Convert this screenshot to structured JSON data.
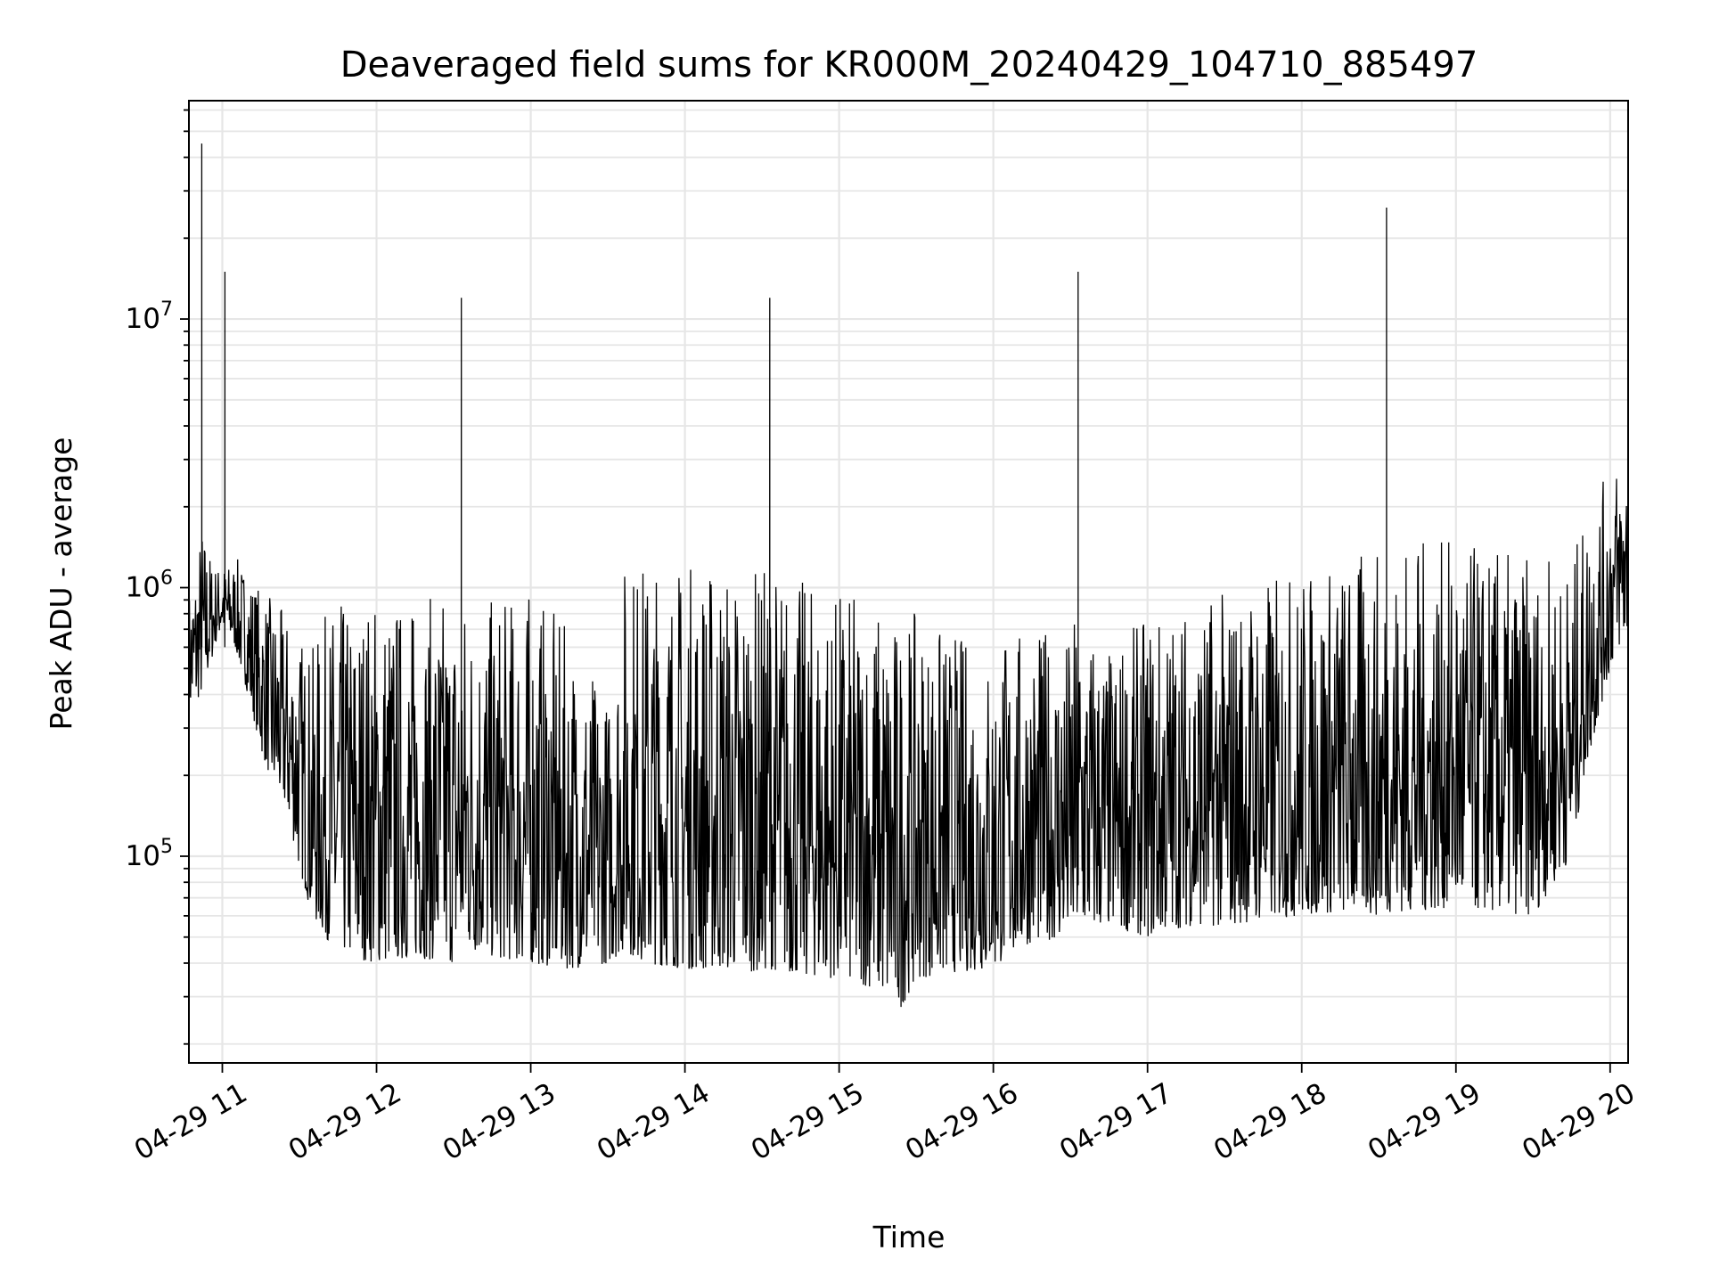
{
  "chart_data": {
    "type": "line",
    "title": "Deaveraged field sums for KR000M_20240429_104710_885497",
    "xlabel": "Time",
    "ylabel": "Peak ADU - average",
    "yscale": "log",
    "ylim": [
      17000,
      65000000
    ],
    "xlim": [
      "2024-04-29T10:47:00",
      "2024-04-29T20:07:00"
    ],
    "grid": "major+minor",
    "series_color": "#000000",
    "grid_color": "#e6e6e6",
    "x_ticks": [
      "04-29 11",
      "04-29 12",
      "04-29 13",
      "04-29 14",
      "04-29 15",
      "04-29 16",
      "04-29 17",
      "04-29 18",
      "04-29 19",
      "04-29 20"
    ],
    "y_ticks": [
      {
        "base": "10",
        "exp": "5",
        "value": 100000
      },
      {
        "base": "10",
        "exp": "6",
        "value": 1000000
      },
      {
        "base": "10",
        "exp": "7",
        "value": 10000000
      }
    ],
    "series": [
      {
        "x": [
          "2024-04-29T10:47:00",
          "2024-04-29T10:50:00",
          "2024-04-29T10:52:00",
          "2024-04-29T10:55:00",
          "2024-04-29T10:58:00",
          "2024-04-29T11:00:00",
          "2024-04-29T11:01:00",
          "2024-04-29T11:05:00",
          "2024-04-29T11:10:00",
          "2024-04-29T11:15:00",
          "2024-04-29T11:20:00",
          "2024-04-29T11:25:00",
          "2024-04-29T11:30:00",
          "2024-04-29T11:35:00",
          "2024-04-29T11:40:00",
          "2024-04-29T11:45:00",
          "2024-04-29T11:50:00",
          "2024-04-29T12:00:00",
          "2024-04-29T12:15:00",
          "2024-04-29T12:30:00",
          "2024-04-29T12:33:00",
          "2024-04-29T12:45:00",
          "2024-04-29T13:00:00",
          "2024-04-29T13:15:00",
          "2024-04-29T13:30:00",
          "2024-04-29T13:37:00",
          "2024-04-29T13:40:00",
          "2024-04-29T13:45:00",
          "2024-04-29T14:00:00",
          "2024-04-29T14:15:00",
          "2024-04-29T14:30:00",
          "2024-04-29T14:33:00",
          "2024-04-29T14:45:00",
          "2024-04-29T15:00:00",
          "2024-04-29T15:15:00",
          "2024-04-29T15:23:00",
          "2024-04-29T15:30:00",
          "2024-04-29T15:45:00",
          "2024-04-29T16:00:00",
          "2024-04-29T16:05:00",
          "2024-04-29T16:15:00",
          "2024-04-29T16:30:00",
          "2024-04-29T16:33:00",
          "2024-04-29T16:45:00",
          "2024-04-29T17:00:00",
          "2024-04-29T17:15:00",
          "2024-04-29T17:30:00",
          "2024-04-29T17:45:00",
          "2024-04-29T18:00:00",
          "2024-04-29T18:15:00",
          "2024-04-29T18:30:00",
          "2024-04-29T18:33:00",
          "2024-04-29T18:45:00",
          "2024-04-29T19:00:00",
          "2024-04-29T19:15:00",
          "2024-04-29T19:30:00",
          "2024-04-29T19:45:00",
          "2024-04-29T19:50:00",
          "2024-04-29T20:00:00",
          "2024-04-29T20:05:00"
        ],
        "y": [
          550000,
          600000,
          45000000,
          750000,
          1000000,
          900000,
          15000000,
          1000000,
          700000,
          600000,
          400000,
          250000,
          200000,
          80000,
          100000,
          90000,
          100000,
          120000,
          150000,
          200000,
          12000000,
          150000,
          100000,
          90000,
          70000,
          800000,
          400000,
          350000,
          300000,
          250000,
          200000,
          12000000,
          150000,
          100000,
          100000,
          70000,
          80000,
          90000,
          80000,
          120000,
          110000,
          130000,
          15000000,
          120000,
          110000,
          120000,
          200000,
          300000,
          350000,
          400000,
          450000,
          26000000,
          500000,
          550000,
          550000,
          500000,
          600000,
          800000,
          1200000,
          1400000
        ],
        "envelope_high": [
          1000000,
          1300000,
          1800000,
          1400000,
          1200000,
          1300000,
          1200000,
          1300000,
          1200000,
          1000000,
          900000,
          800000,
          700000,
          600000,
          800000,
          900000,
          900000,
          1000000,
          900000,
          1000000,
          1000000,
          900000,
          1000000,
          700000,
          400000,
          1400000,
          1400000,
          1300000,
          1300000,
          1300000,
          1200000,
          1300000,
          1100000,
          1000000,
          900000,
          800000,
          800000,
          700000,
          600000,
          700000,
          700000,
          700000,
          900000,
          600000,
          800000,
          900000,
          1000000,
          1100000,
          1200000,
          1300000,
          1400000,
          1400000,
          1500000,
          1500000,
          1400000,
          1300000,
          1300000,
          1800000,
          2800000,
          3200000
        ],
        "envelope_low": [
          350000,
          380000,
          400000,
          500000,
          650000,
          700000,
          700000,
          600000,
          400000,
          250000,
          180000,
          150000,
          90000,
          60000,
          50000,
          45000,
          42000,
          40000,
          42000,
          40000,
          45000,
          42000,
          40000,
          38000,
          40000,
          45000,
          42000,
          40000,
          38000,
          38000,
          37000,
          38000,
          36000,
          35000,
          32000,
          26000,
          35000,
          37000,
          38000,
          42000,
          48000,
          50000,
          52000,
          55000,
          50000,
          55000,
          55000,
          58000,
          60000,
          62000,
          60000,
          62000,
          62000,
          65000,
          62000,
          60000,
          100000,
          200000,
          500000,
          650000
        ]
      }
    ]
  }
}
